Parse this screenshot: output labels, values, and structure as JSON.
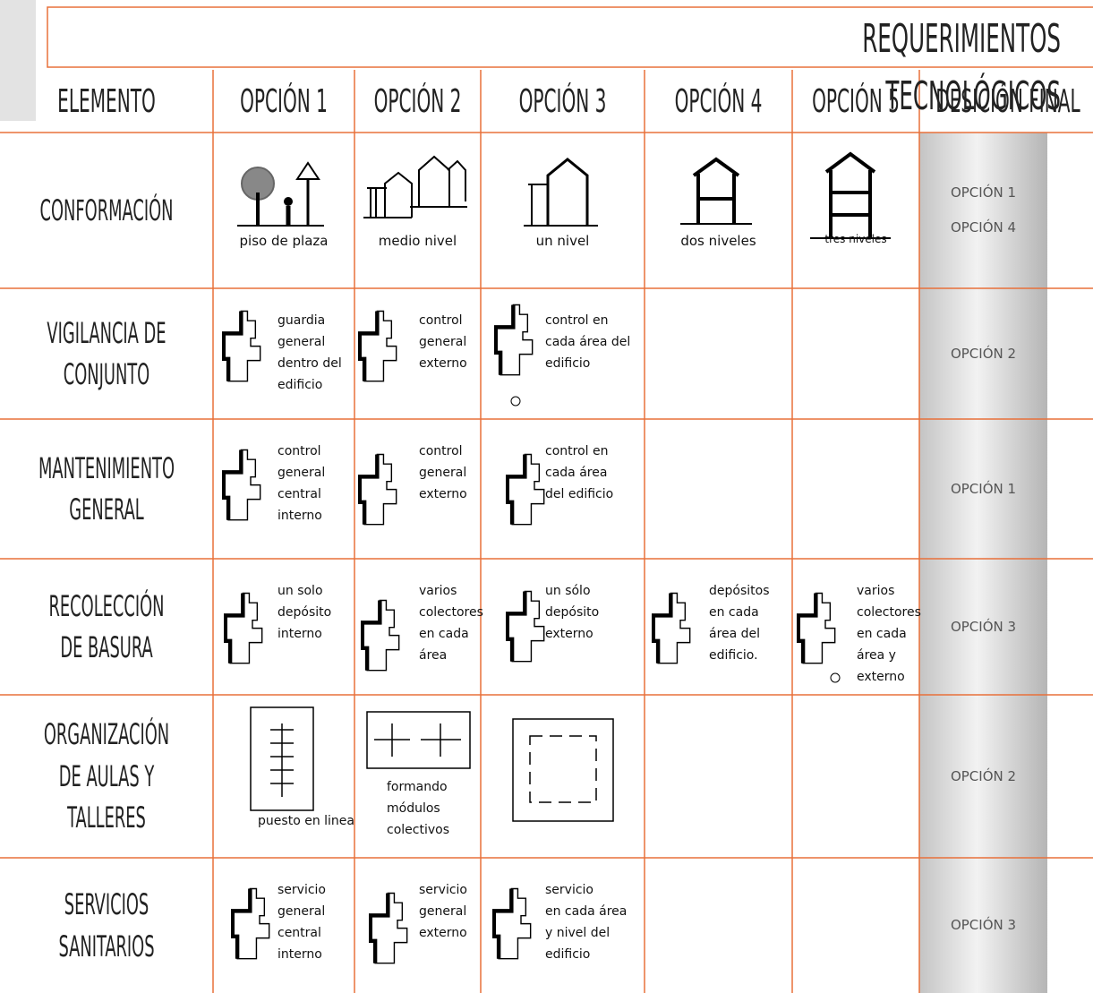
{
  "header": {
    "title": "REQUERIMIENTOS TECNOLÓGICOS"
  },
  "table": {
    "headers": [
      "ELEMENTO",
      "OPCIÓN 1",
      "OPCIÓN 2",
      "OPCIÓN 3",
      "OPCIÓN 4",
      "OPCIÓN 5",
      "DESICIÓN FINAL"
    ],
    "rows": [
      {
        "element": "CONFORMACIÓN",
        "options": [
          "piso de plaza",
          "medio nivel",
          "un nivel",
          "dos niveles",
          "tres niveles"
        ],
        "decision": "OPCIÓN 1\nOPCIÓN 4"
      },
      {
        "element": "VIGILANCIA DE\nCONJUNTO",
        "options": [
          "guardia\ngeneral\ndentro del\nedificio",
          "control\ngeneral\nexterno",
          "control en\ncada área del\nedificio",
          null,
          null
        ],
        "decision": "OPCIÓN 2"
      },
      {
        "element": "MANTENIMIENTO\nGENERAL",
        "options": [
          "control\ngeneral\ncentral\ninterno",
          "control\ngeneral\nexterno",
          "control en\ncada área\ndel edificio",
          null,
          null
        ],
        "decision": "OPCIÓN 1"
      },
      {
        "element": "RECOLECCIÓN\nDE BASURA",
        "options": [
          "un solo\ndepósito\ninterno",
          "varios\ncolectores\nen cada\nárea",
          "un sólo\ndepósito\nexterno",
          "depósitos\nen cada\nárea del\nedificio.",
          "varios\ncolectores\nen cada\nárea y\nexterno"
        ],
        "decision": "OPCIÓN 3"
      },
      {
        "element": "ORGANIZACIÓN\nDE AULAS Y\nTALLERES",
        "options": [
          "puesto en linea",
          "formando\nmódulos\ncolectivos",
          null,
          null,
          null
        ],
        "decision": "OPCIÓN 2"
      },
      {
        "element": "SERVICIOS\nSANITARIOS",
        "options": [
          "servicio\ngeneral\ncentral\ninterno",
          "servicio\ngeneral\nexterno",
          "servicio\nen cada área\ny nivel del\nedificio",
          null,
          null
        ],
        "decision": "OPCIÓN 3"
      }
    ]
  }
}
